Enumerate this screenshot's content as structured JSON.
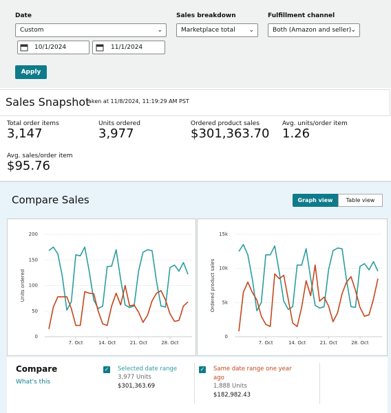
{
  "filters": {
    "date": {
      "label": "Date",
      "value": "Custom",
      "start": "10/1/2024",
      "end": "11/1/2024"
    },
    "breakdown": {
      "label": "Sales breakdown",
      "value": "Marketplace total"
    },
    "fulfillment": {
      "label": "Fulfillment channel",
      "value": "Both (Amazon and seller)"
    },
    "apply": "Apply"
  },
  "snapshot": {
    "title": "Sales Snapshot",
    "taken": "taken at 11/8/2024, 11:19:29 AM PST",
    "metrics": [
      {
        "label": "Total order items",
        "value": "3,147"
      },
      {
        "label": "Units ordered",
        "value": "3,977"
      },
      {
        "label": "Ordered product sales",
        "value": "$301,363.70"
      },
      {
        "label": "Avg. units/order item",
        "value": "1.26"
      },
      {
        "label": "Avg. sales/order item",
        "value": "$95.76"
      }
    ]
  },
  "compare": {
    "title": "Compare Sales",
    "views": [
      "Graph view",
      "Table view"
    ],
    "legend": {
      "title": "Compare",
      "link": "What's this",
      "items": [
        {
          "units": "3,977 Units",
          "sales": "$301,363.69"
        },
        {
          "units": "1,888 Units",
          "sales": "$182,982.43"
        }
      ]
    }
  },
  "chart_data": [
    {
      "type": "line",
      "y_label": "Units ordered",
      "categories": [
        null,
        null,
        null,
        null,
        null,
        null,
        "7. Oct",
        null,
        null,
        null,
        null,
        null,
        null,
        "14. Oct",
        null,
        null,
        null,
        null,
        null,
        null,
        "21. Oct",
        null,
        null,
        null,
        null,
        null,
        null,
        "28. Oct",
        null,
        null,
        null,
        null
      ],
      "ylim": [
        0,
        200
      ],
      "yticks": [
        0,
        50,
        100,
        150,
        200
      ],
      "grid": true,
      "series": [
        {
          "name": "Selected date range",
          "color": "#2a9d9f",
          "values": [
            168,
            175,
            162,
            118,
            52,
            68,
            160,
            158,
            175,
            128,
            72,
            55,
            60,
            137,
            138,
            170,
            112,
            62,
            57,
            60,
            128,
            165,
            170,
            168,
            108,
            60,
            58,
            135,
            140,
            128,
            145,
            122
          ]
        },
        {
          "name": "Same date range one year ago",
          "color": "#c4461c",
          "values": [
            15,
            58,
            78,
            78,
            78,
            55,
            22,
            22,
            88,
            85,
            84,
            50,
            25,
            22,
            60,
            85,
            62,
            100,
            60,
            62,
            48,
            28,
            42,
            70,
            85,
            90,
            72,
            45,
            30,
            32,
            60,
            68
          ]
        }
      ]
    },
    {
      "type": "line",
      "y_label": "Ordered product sales",
      "categories": [
        null,
        null,
        null,
        null,
        null,
        null,
        "7. Oct",
        null,
        null,
        null,
        null,
        null,
        null,
        "14. Oct",
        null,
        null,
        null,
        null,
        null,
        null,
        "21. Oct",
        null,
        null,
        null,
        null,
        null,
        null,
        "28. Oct",
        null,
        null,
        null,
        null
      ],
      "ylim": [
        0,
        15000
      ],
      "yticks": [
        0,
        {
          "value": 5000,
          "label": "5k"
        },
        {
          "value": 10000,
          "label": "10k"
        },
        {
          "value": 15000,
          "label": "15k"
        }
      ],
      "grid": true,
      "series": [
        {
          "name": "Selected date range",
          "color": "#2a9d9f",
          "values": [
            12500,
            13500,
            12000,
            8500,
            3800,
            5000,
            12000,
            12000,
            13300,
            9500,
            5200,
            4000,
            4400,
            10500,
            10500,
            12900,
            8600,
            4600,
            4200,
            4400,
            9800,
            12600,
            13000,
            12900,
            8300,
            4400,
            4300,
            10300,
            10700,
            9800,
            11000,
            9600
          ]
        },
        {
          "name": "Same date range one year ago",
          "color": "#c4461c",
          "values": [
            800,
            6500,
            8000,
            6500,
            5400,
            3000,
            1800,
            1500,
            9200,
            8500,
            9000,
            5500,
            2000,
            1500,
            4300,
            8200,
            6000,
            10500,
            5200,
            5800,
            4500,
            2200,
            3500,
            6300,
            8000,
            8800,
            6800,
            4300,
            3000,
            3200,
            5500,
            8500
          ]
        }
      ]
    }
  ]
}
